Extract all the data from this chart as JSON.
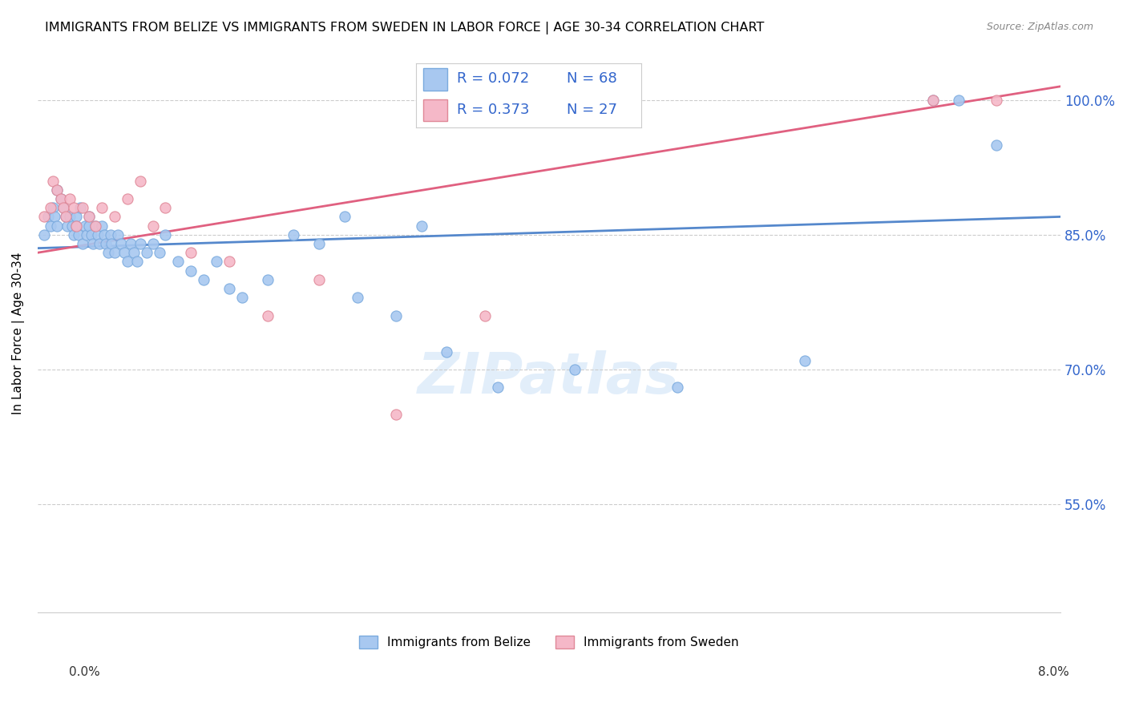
{
  "title": "IMMIGRANTS FROM BELIZE VS IMMIGRANTS FROM SWEDEN IN LABOR FORCE | AGE 30-34 CORRELATION CHART",
  "source": "Source: ZipAtlas.com",
  "ylabel": "In Labor Force | Age 30-34",
  "yticks": [
    55.0,
    70.0,
    85.0,
    100.0
  ],
  "ytick_labels": [
    "55.0%",
    "70.0%",
    "85.0%",
    "100.0%"
  ],
  "xmin": 0.0,
  "xmax": 8.0,
  "ymin": 43.0,
  "ymax": 105.0,
  "belize_color": "#a8c8f0",
  "belize_edge": "#7aaade",
  "sweden_color": "#f5b8c8",
  "sweden_edge": "#e08898",
  "line_belize": "#5588cc",
  "line_sweden": "#e06080",
  "belize_R": 0.072,
  "belize_N": 68,
  "sweden_R": 0.373,
  "sweden_N": 27,
  "legend_text_color": "#3366cc",
  "belize_scatter_x": [
    0.05,
    0.08,
    0.1,
    0.12,
    0.13,
    0.15,
    0.15,
    0.18,
    0.2,
    0.22,
    0.23,
    0.25,
    0.27,
    0.28,
    0.3,
    0.3,
    0.32,
    0.33,
    0.35,
    0.37,
    0.38,
    0.4,
    0.4,
    0.42,
    0.43,
    0.45,
    0.47,
    0.48,
    0.5,
    0.52,
    0.53,
    0.55,
    0.57,
    0.58,
    0.6,
    0.63,
    0.65,
    0.68,
    0.7,
    0.73,
    0.75,
    0.78,
    0.8,
    0.85,
    0.9,
    0.95,
    1.0,
    1.1,
    1.2,
    1.3,
    1.4,
    1.5,
    1.6,
    1.8,
    2.0,
    2.2,
    2.5,
    2.8,
    3.2,
    3.6,
    4.2,
    5.0,
    6.0,
    7.0,
    7.2,
    7.5,
    2.4,
    3.0
  ],
  "belize_scatter_y": [
    85,
    87,
    86,
    88,
    87,
    86,
    90,
    89,
    88,
    87,
    86,
    87,
    86,
    85,
    87,
    86,
    85,
    88,
    84,
    86,
    85,
    87,
    86,
    85,
    84,
    86,
    85,
    84,
    86,
    85,
    84,
    83,
    85,
    84,
    83,
    85,
    84,
    83,
    82,
    84,
    83,
    82,
    84,
    83,
    84,
    83,
    85,
    82,
    81,
    80,
    82,
    79,
    78,
    80,
    85,
    84,
    78,
    76,
    72,
    68,
    70,
    68,
    71,
    100,
    100,
    95,
    87,
    86
  ],
  "sweden_scatter_x": [
    0.05,
    0.1,
    0.12,
    0.15,
    0.18,
    0.2,
    0.22,
    0.25,
    0.28,
    0.3,
    0.35,
    0.4,
    0.45,
    0.5,
    0.6,
    0.7,
    0.8,
    0.9,
    1.0,
    1.2,
    1.5,
    1.8,
    2.2,
    2.8,
    3.5,
    7.0,
    7.5
  ],
  "sweden_scatter_y": [
    87,
    88,
    91,
    90,
    89,
    88,
    87,
    89,
    88,
    86,
    88,
    87,
    86,
    88,
    87,
    89,
    91,
    86,
    88,
    83,
    82,
    76,
    80,
    65,
    76,
    100,
    100
  ]
}
